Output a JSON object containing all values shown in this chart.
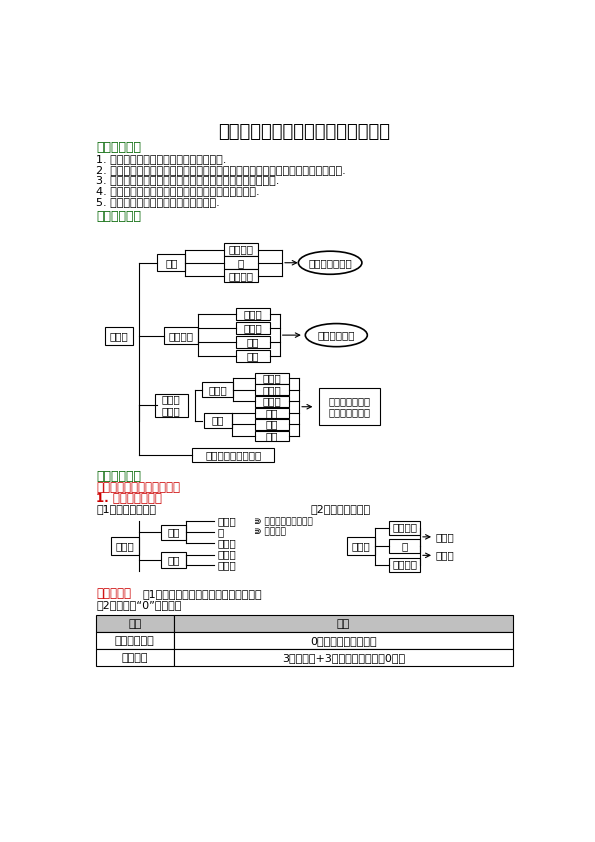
{
  "title": "《有理数》全章复习与巩固（基础）",
  "bg_color": "#ffffff",
  "green_color": "#006400",
  "red_color": "#cc0000",
  "black_color": "#000000",
  "learning_goals_title": "【学习目标】",
  "learning_goals": [
    "1. 理解正负数的意义，掌握有理数的概念.",
    "2. 理解并会用有理数的加、减、乘、除和乘方五种运算法则进行有理数的混合运算.",
    "3. 学会借助数轴来理解绝对値、有理数比较大小等相关知识.",
    "4. 理解科学记数法及近似数的相关概念并能灵活应用.",
    "5. 体会数学知识中体现的一些数学思想."
  ],
  "knowledge_network_title": "【知识网络】",
  "key_points_title": "【要点梳理】",
  "key_point_one_title": "要点一、有理数的相关概念",
  "sub_title_1": "1. 有理数的分类：",
  "sub_title_1a": "（1）按定义分类：",
  "sub_title_1b": "（2）按性质分类：",
  "tip_title": "要点诊断：",
  "tip_1": "（1）用正数、负数表示相反意义的量；",
  "tip_2": "（2）有理数“0”的作用：",
  "table_headers": [
    "作用",
    "举例"
  ],
  "table_rows": [
    [
      "表示数的性质",
      "0是自然数，是有理数"
    ],
    [
      "表示没有",
      "3个苹果用+3表示，没有苹果用0表示"
    ]
  ]
}
